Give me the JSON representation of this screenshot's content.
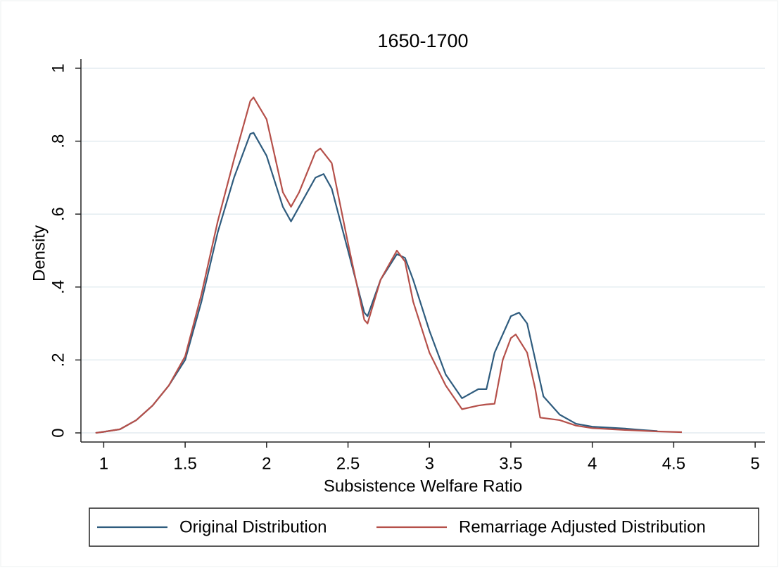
{
  "chart_data": {
    "type": "line",
    "title": "1650-1700",
    "x_label": "Subsistence Welfare Ratio",
    "y_label": "Density",
    "xlim": [
      0.86,
      5.06
    ],
    "ylim": [
      -0.025,
      1.025
    ],
    "xticks": [
      1,
      1.5,
      2,
      2.5,
      3,
      3.5,
      4,
      4.5,
      5
    ],
    "yticks": [
      0,
      {
        "value": 0.2,
        "label": ".2"
      },
      {
        "value": 0.4,
        "label": ".4"
      },
      {
        "value": 0.6,
        "label": ".6"
      },
      {
        "value": 0.8,
        "label": ".8"
      },
      1
    ],
    "grid": true,
    "legend": "bottom",
    "series": [
      {
        "name": "Original Distribution",
        "color": "#2f5c7e",
        "x": [
          0.95,
          1.0,
          1.1,
          1.2,
          1.3,
          1.4,
          1.5,
          1.6,
          1.7,
          1.8,
          1.9,
          1.92,
          2.0,
          2.1,
          2.15,
          2.2,
          2.3,
          2.35,
          2.4,
          2.5,
          2.6,
          2.62,
          2.7,
          2.8,
          2.85,
          2.9,
          3.0,
          3.1,
          3.2,
          3.3,
          3.35,
          3.4,
          3.5,
          3.55,
          3.6,
          3.65,
          3.7,
          3.8,
          3.9,
          4.0,
          4.2,
          4.3,
          4.4
        ],
        "values": [
          0,
          0.003,
          0.01,
          0.035,
          0.075,
          0.13,
          0.2,
          0.36,
          0.55,
          0.7,
          0.82,
          0.823,
          0.76,
          0.62,
          0.58,
          0.62,
          0.7,
          0.71,
          0.67,
          0.5,
          0.33,
          0.32,
          0.42,
          0.49,
          0.48,
          0.42,
          0.28,
          0.16,
          0.095,
          0.12,
          0.12,
          0.22,
          0.32,
          0.33,
          0.3,
          0.2,
          0.1,
          0.05,
          0.025,
          0.017,
          0.012,
          0.008,
          0.005
        ]
      },
      {
        "name": "Remarriage Adjusted Distribution",
        "color": "#b5504a",
        "x": [
          0.95,
          1.0,
          1.1,
          1.2,
          1.3,
          1.4,
          1.5,
          1.6,
          1.7,
          1.8,
          1.9,
          1.92,
          2.0,
          2.1,
          2.15,
          2.2,
          2.3,
          2.33,
          2.4,
          2.5,
          2.6,
          2.62,
          2.7,
          2.8,
          2.85,
          2.9,
          3.0,
          3.1,
          3.2,
          3.3,
          3.35,
          3.4,
          3.45,
          3.5,
          3.53,
          3.6,
          3.65,
          3.68,
          3.8,
          3.9,
          4.0,
          4.2,
          4.4,
          4.55
        ],
        "values": [
          0,
          0.003,
          0.01,
          0.035,
          0.075,
          0.13,
          0.21,
          0.38,
          0.58,
          0.75,
          0.91,
          0.92,
          0.86,
          0.66,
          0.62,
          0.66,
          0.77,
          0.78,
          0.74,
          0.52,
          0.31,
          0.3,
          0.42,
          0.5,
          0.47,
          0.36,
          0.22,
          0.13,
          0.065,
          0.075,
          0.078,
          0.08,
          0.2,
          0.26,
          0.27,
          0.22,
          0.12,
          0.042,
          0.035,
          0.02,
          0.013,
          0.008,
          0.004,
          0.002
        ]
      }
    ]
  }
}
